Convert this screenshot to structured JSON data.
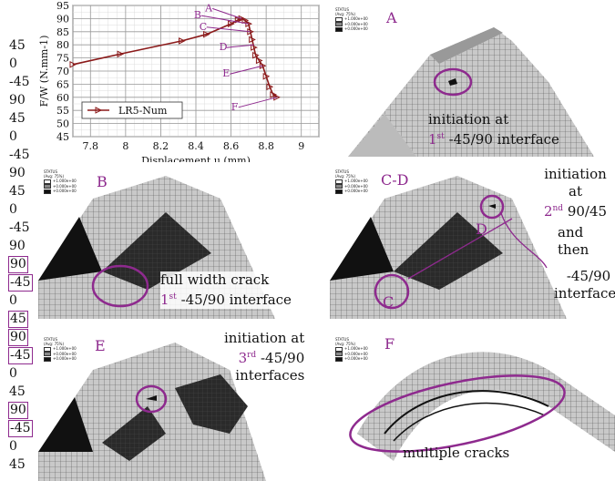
{
  "ply_sequence": [
    "45",
    "0",
    "-45",
    "90",
    "45",
    "0",
    "-45",
    "90",
    "45",
    "0",
    "-45",
    "90",
    "90",
    "-45",
    "0",
    "45",
    "90",
    "-45",
    "0",
    "45",
    "90",
    "-45",
    "0",
    "45"
  ],
  "ply_boxed": [
    false,
    false,
    false,
    false,
    false,
    false,
    false,
    false,
    false,
    false,
    false,
    false,
    true,
    true,
    false,
    true,
    true,
    true,
    false,
    false,
    true,
    true,
    false,
    false
  ],
  "chart_data": {
    "type": "line",
    "xlabel": "Displacement u (mm)",
    "ylabel": "F/W (N.mm-1)",
    "xlim": [
      7.7,
      9.1
    ],
    "ylim": [
      45,
      95
    ],
    "xticks": [
      "7.8",
      "8",
      "8.2",
      "8.4",
      "8.6",
      "8.8",
      "9"
    ],
    "yticks": [
      "45",
      "50",
      "55",
      "60",
      "65",
      "70",
      "75",
      "80",
      "85",
      "90",
      "95"
    ],
    "series": [
      {
        "name": "LR5-Num",
        "color": "#8b1a1a",
        "x": [
          7.7,
          7.97,
          8.32,
          8.46,
          8.6,
          8.64,
          8.66,
          8.68,
          8.7,
          8.71,
          8.72,
          8.73,
          8.74,
          8.76,
          8.78,
          8.8,
          8.82,
          8.84,
          8.86
        ],
        "y": [
          72.5,
          76.5,
          81.5,
          84,
          88,
          89.5,
          90,
          89.3,
          88,
          85,
          82,
          79,
          76,
          74,
          72,
          68,
          64,
          61,
          60
        ]
      }
    ],
    "annotations": [
      {
        "text": "A",
        "x": 8.66,
        "y": 90
      },
      {
        "text": "B",
        "x": 8.7,
        "y": 88
      },
      {
        "text": "C",
        "x": 8.71,
        "y": 85
      },
      {
        "text": "D",
        "x": 8.73,
        "y": 80
      },
      {
        "text": "E",
        "x": 8.78,
        "y": 72
      },
      {
        "text": "F",
        "x": 8.86,
        "y": 60
      }
    ],
    "grid": true,
    "legend": "bottom-left"
  },
  "panels": {
    "A": {
      "label": "A",
      "text1": "initiation at",
      "sup_num": "1",
      "sup": "st",
      "text2": " -45/90 interface"
    },
    "B": {
      "label": "B",
      "text1": "full width crack",
      "sup_num": "1",
      "sup": "st",
      "text2": " -45/90 interface"
    },
    "CD": {
      "label": "C-D",
      "text1": "initiation at",
      "sup_num": "2",
      "sup": "nd",
      "text2": " 90/45",
      "text3": "and then",
      "text4": "-45/90",
      "text5": "interfaces",
      "markC": "C",
      "markD": "D"
    },
    "E": {
      "label": "E",
      "text1": "initiation at",
      "sup_num": "3",
      "sup": "rd",
      "text2": " -45/90",
      "text3": "interfaces"
    },
    "F": {
      "label": "F",
      "text1": "multiple cracks"
    }
  },
  "status_legend": {
    "title": "STATUS",
    "sub": "(Avg: 75%)",
    "v1": "+1.000e+00",
    "v2": "+0.000e+00",
    "v3": "+0.000e+00"
  }
}
